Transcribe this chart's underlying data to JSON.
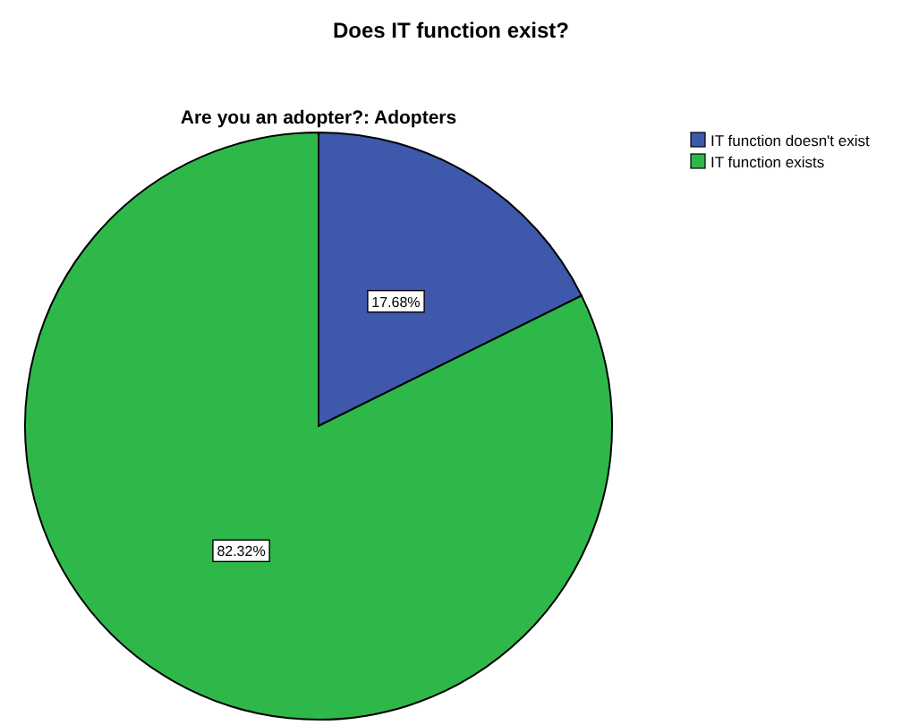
{
  "chart_data": {
    "type": "pie",
    "title": "Does IT function exist?",
    "subtitle": "Are you an adopter?: Adopters",
    "categories": [
      "IT function doesn't exist",
      "IT function exists"
    ],
    "values": [
      17.68,
      82.32
    ],
    "colors": [
      "#3e58ac",
      "#2fb84a"
    ],
    "value_labels": [
      "17.68%",
      "82.32%"
    ],
    "legend": "top right"
  }
}
